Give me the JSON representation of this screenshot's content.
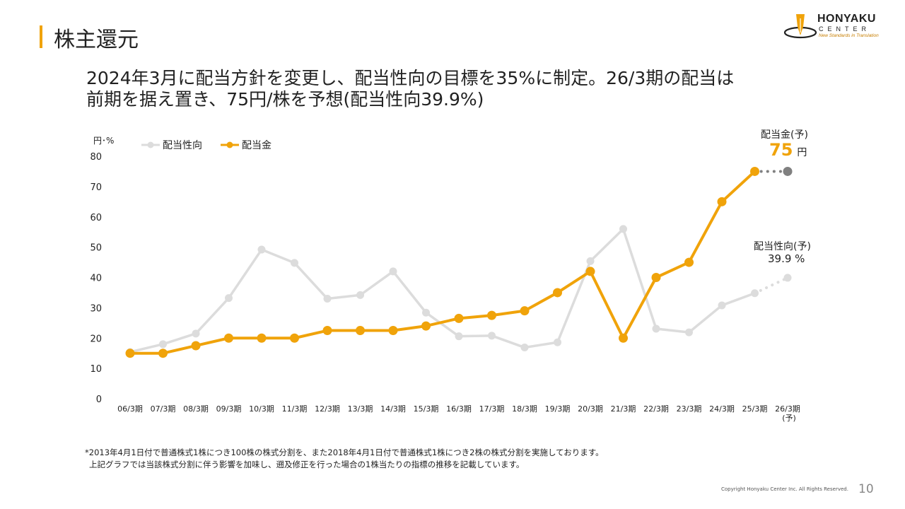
{
  "page_title": "株主還元",
  "headline": {
    "line1": "2024年3月に配当方針を変更し、配当性向の目標を35%に制定。26/3期の配当は",
    "line2": "前期を据え置き、75円/株を予想(配当性向39.9%)"
  },
  "logo": {
    "name": "HONYAKU",
    "sub": "CENTER",
    "tagline": "New Standards in Translation"
  },
  "colors": {
    "accent": "#F0A30A",
    "payout_line": "#DCDCDC",
    "forecast_dot": "#808080"
  },
  "chart_data": {
    "type": "line",
    "unit_label": "円･%",
    "categories": [
      "06/3期",
      "07/3期",
      "08/3期",
      "09/3期",
      "10/3期",
      "11/3期",
      "12/3期",
      "13/3期",
      "14/3期",
      "15/3期",
      "16/3期",
      "17/3期",
      "18/3期",
      "19/3期",
      "20/3期",
      "21/3期",
      "22/3期",
      "23/3期",
      "24/3期",
      "25/3期",
      "26/3期"
    ],
    "category_sublabels": [
      "",
      "",
      "",
      "",
      "",
      "",
      "",
      "",
      "",
      "",
      "",
      "",
      "",
      "",
      "",
      "",
      "",
      "",
      "",
      "",
      "(予)"
    ],
    "yticks": [
      0,
      10,
      20,
      30,
      40,
      50,
      60,
      70,
      80
    ],
    "ylim": [
      0,
      80
    ],
    "series": [
      {
        "name": "配当性向",
        "color": "#DCDCDC",
        "values": [
          15.4,
          18.0,
          21.5,
          33.2,
          49.2,
          44.8,
          33.0,
          34.2,
          42.0,
          28.4,
          20.6,
          20.8,
          16.9,
          18.6,
          45.4,
          56.0,
          23.1,
          21.9,
          30.8,
          34.8,
          39.9
        ],
        "forecast_from_index": 20
      },
      {
        "name": "配当金",
        "color": "#F0A30A",
        "values": [
          15,
          15,
          17.5,
          20,
          20,
          20,
          22.5,
          22.5,
          22.5,
          24,
          26.5,
          27.5,
          29,
          35,
          42,
          20,
          40,
          45,
          65,
          75,
          75
        ],
        "forecast_from_index": 20
      }
    ],
    "legend": "top-left",
    "annotations": {
      "dividend_label": "配当金(予)",
      "dividend_value": "75",
      "dividend_unit": "円",
      "payout_label": "配当性向(予)",
      "payout_value": "39.9 %"
    }
  },
  "footnote": {
    "line1": "*2013年4月1日付で普通株式1株につき100株の株式分割を、また2018年4月1日付で普通株式1株につき2株の株式分割を実施しております。",
    "line2": "上記グラフでは当該株式分割に伴う影響を加味し、遡及修正を行った場合の1株当たりの指標の推移を記載しています。"
  },
  "copyright": "Copyright Honyaku Center Inc. All Rights Reserved.",
  "page_number": "10"
}
